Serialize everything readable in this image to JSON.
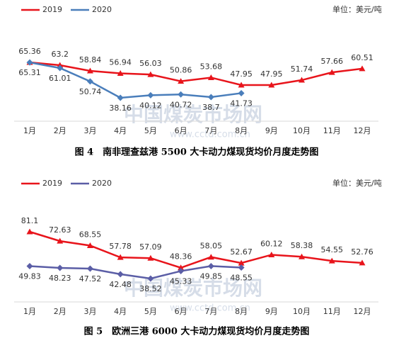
{
  "chart_data": [
    {
      "type": "line",
      "title": "图 4　南非理查兹港 5500 大卡动力煤现货均价月度走势图",
      "unit": "单位：美元/吨",
      "watermark": "中国煤炭市场网",
      "watermark_url": "www.cctd.com.cn",
      "categories": [
        "1月",
        "2月",
        "3月",
        "4月",
        "5月",
        "6月",
        "7月",
        "8月",
        "9月",
        "10月",
        "11月",
        "12月"
      ],
      "series": [
        {
          "name": "2019",
          "color": "#e8141b",
          "marker": "triangle",
          "values": [
            65.36,
            63.2,
            58.84,
            56.94,
            56.03,
            50.86,
            53.68,
            47.95,
            47.95,
            51.74,
            57.66,
            60.51
          ]
        },
        {
          "name": "2020",
          "color": "#4a7ebb",
          "marker": "diamond",
          "values": [
            65.31,
            61.01,
            50.74,
            38.16,
            40.12,
            40.72,
            38.7,
            41.73,
            null,
            null,
            null,
            null
          ]
        }
      ],
      "legend": "top-left"
    },
    {
      "type": "line",
      "title": "图 5　欧洲三港 6000 大卡动力煤现货均价月度走势图",
      "unit": "单位：美元/吨",
      "watermark": "中国煤炭市场网",
      "watermark_url": "www.cctd.com.cn",
      "categories": [
        "1月",
        "2月",
        "3月",
        "4月",
        "5月",
        "6月",
        "7月",
        "8月",
        "9月",
        "10月",
        "11月",
        "12月"
      ],
      "series": [
        {
          "name": "2019",
          "color": "#e8141b",
          "marker": "triangle",
          "values": [
            81.1,
            72.63,
            68.55,
            57.78,
            57.09,
            48.36,
            58.05,
            52.67,
            60.12,
            58.38,
            54.55,
            52.76
          ]
        },
        {
          "name": "2020",
          "color": "#5b5ea6",
          "marker": "diamond",
          "values": [
            49.83,
            48.23,
            47.52,
            42.48,
            38.52,
            45.33,
            49.85,
            48.55,
            null,
            null,
            null,
            null
          ]
        }
      ],
      "legend": "top-left"
    }
  ]
}
